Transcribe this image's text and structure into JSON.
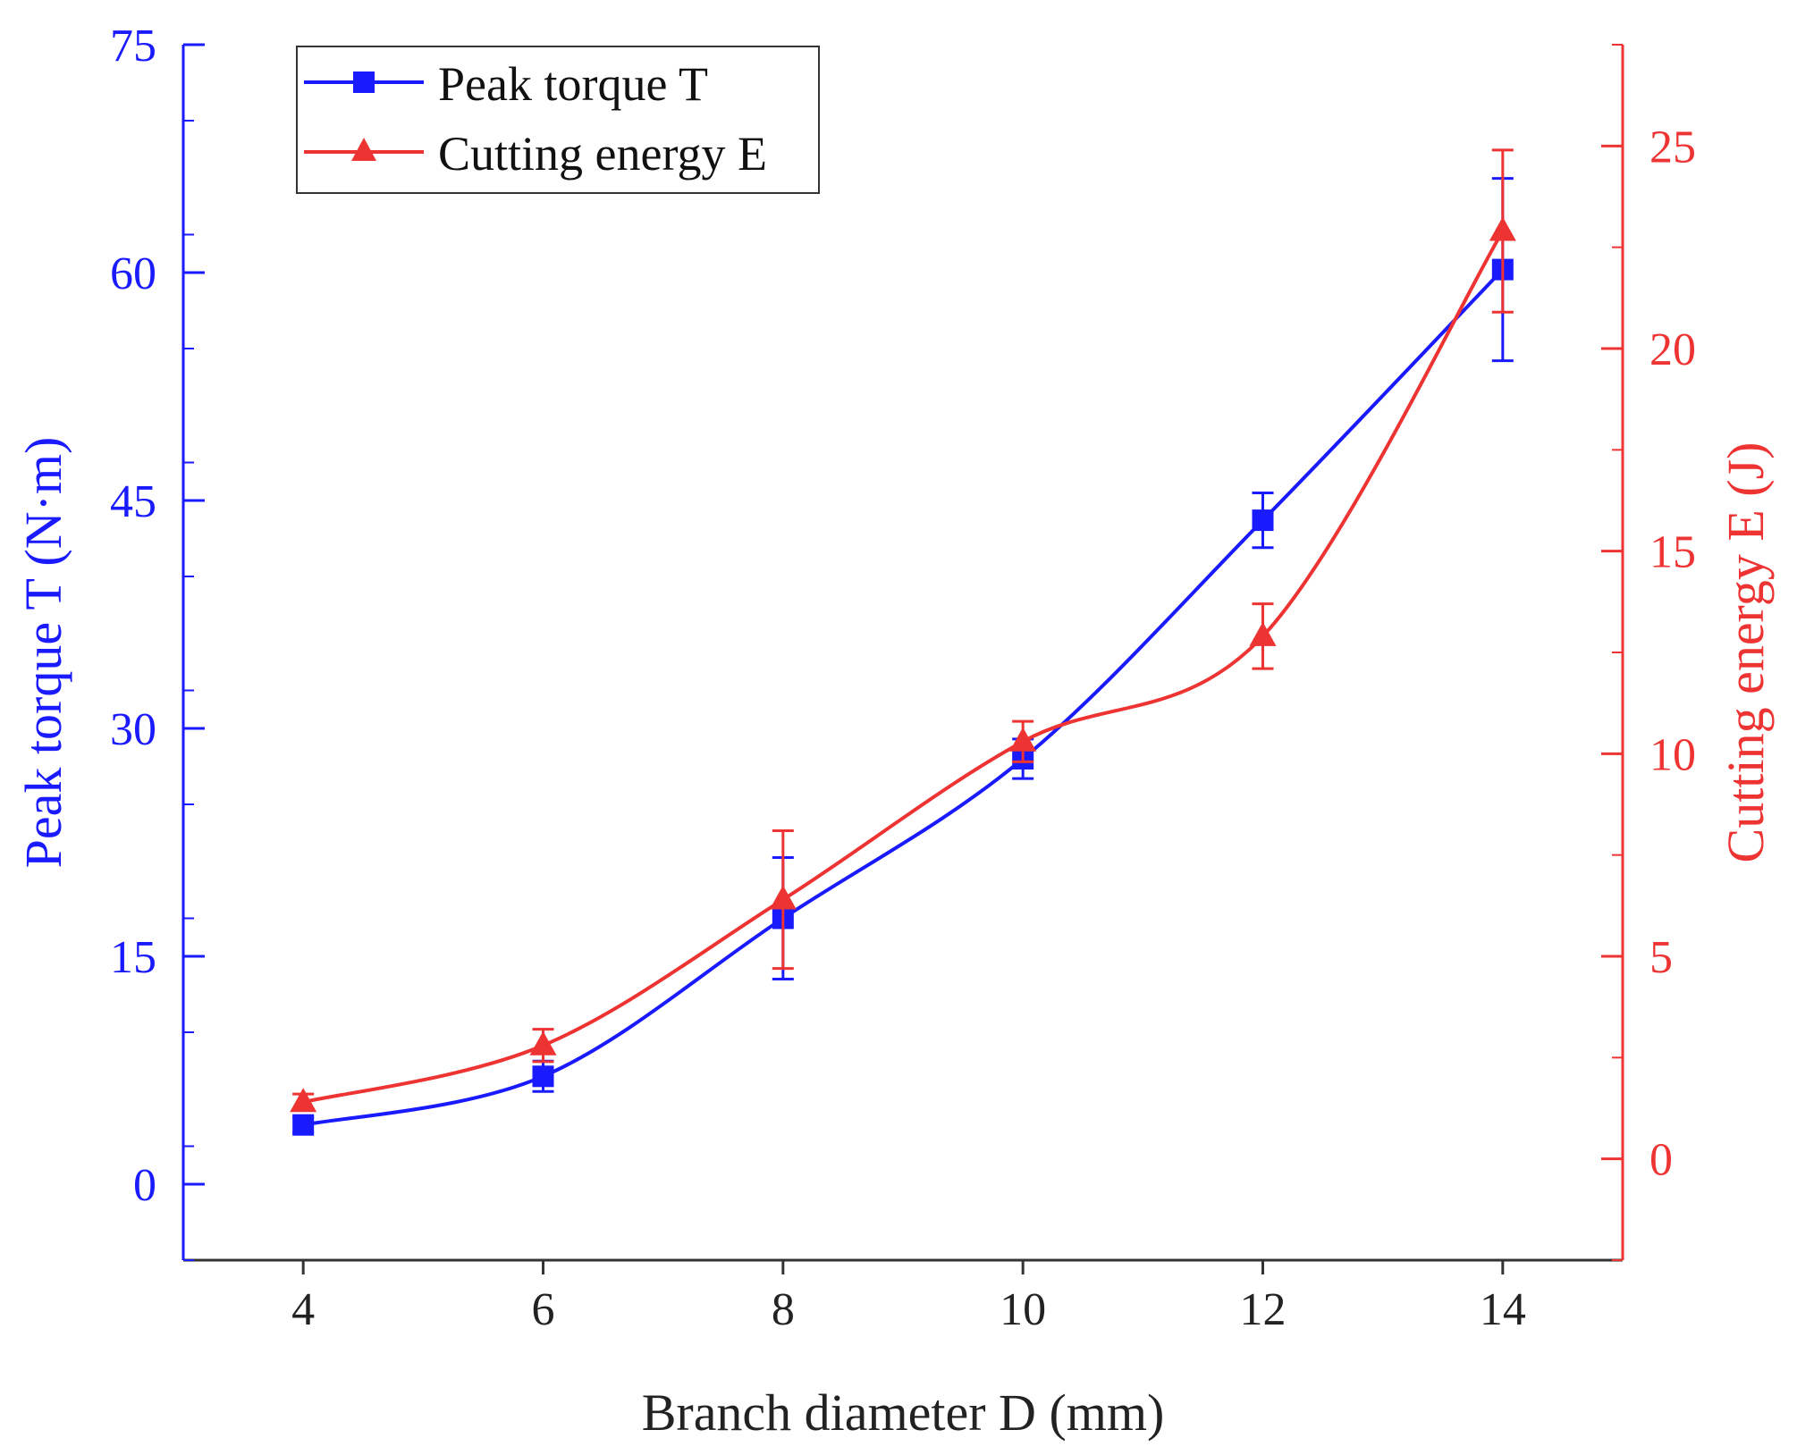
{
  "chart_data": {
    "type": "line",
    "title": "",
    "xlabel": "Branch diameter D (mm)",
    "ylabel_left": "Peak torque T (N·m)",
    "ylabel_right": "Cutting energy E (J)",
    "x": [
      4,
      6,
      8,
      10,
      12,
      14
    ],
    "x_ticks": [
      4,
      6,
      8,
      10,
      12,
      14
    ],
    "xlim": [
      3,
      15
    ],
    "ylim_left": [
      -5,
      75
    ],
    "y_ticks_left": [
      0,
      15,
      30,
      45,
      60,
      75
    ],
    "ylim_right": [
      -2.5,
      27.5
    ],
    "y_ticks_right": [
      0,
      5,
      10,
      15,
      20,
      25
    ],
    "legend_position": "top-left",
    "series": [
      {
        "name": "Peak torque T",
        "axis": "left",
        "marker": "square",
        "color": "#1a1aff",
        "values": [
          3.9,
          7.1,
          17.5,
          28.0,
          43.7,
          60.2
        ],
        "errors": [
          0.5,
          1.0,
          4.0,
          1.3,
          1.8,
          6.0
        ]
      },
      {
        "name": "Cutting energy E",
        "axis": "right",
        "marker": "triangle",
        "color": "#ee3333",
        "values": [
          1.4,
          2.8,
          6.4,
          10.3,
          12.9,
          22.9
        ],
        "errors": [
          0.2,
          0.4,
          1.7,
          0.5,
          0.8,
          2.0
        ]
      }
    ]
  }
}
